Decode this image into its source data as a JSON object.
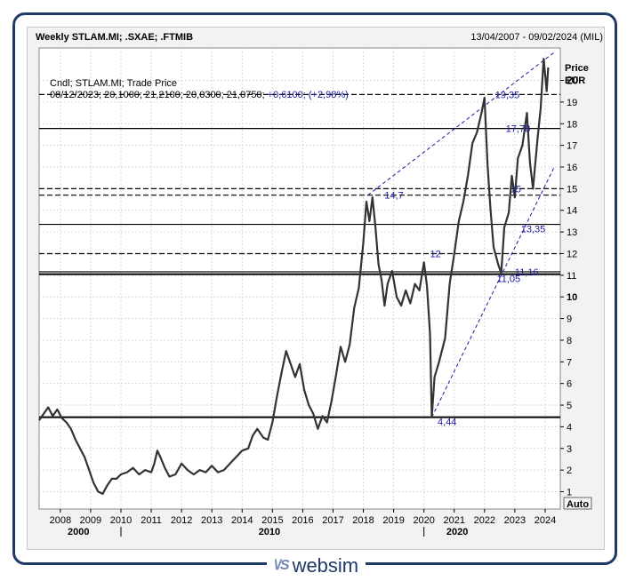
{
  "header": {
    "title": "Weekly STLAM.MI; .SXAE; .FTMIB",
    "date_range": "13/04/2007 - 09/02/2024 (MIL)"
  },
  "legend": {
    "line1": "Cndl; STLAM.MI; Trade Price",
    "line2_values": "08/12/2023; 20,1000; 21,2100; 20,0300; 21,0750;",
    "line2_change": "+0,6100; (+2,98%)"
  },
  "footer": {
    "brand": "websim",
    "mark": "\\/S"
  },
  "colors": {
    "candles": "#333333",
    "annotation": "#1a1aa0",
    "frame": "#1f3a68",
    "hline": "#000000"
  },
  "chart_data": {
    "type": "line",
    "y_axis_title": "Price",
    "y_axis_unit": "EUR",
    "auto_label": "Auto",
    "ylim": [
      0.2,
      21.5
    ],
    "xlim": [
      2007.3,
      2024.5
    ],
    "y_ticks": [
      1,
      2,
      3,
      4,
      5,
      6,
      7,
      8,
      9,
      10,
      11,
      12,
      13,
      14,
      15,
      16,
      17,
      18,
      19,
      20
    ],
    "x_ticks": [
      2008,
      2009,
      2010,
      2011,
      2012,
      2013,
      2014,
      2015,
      2016,
      2017,
      2018,
      2019,
      2020,
      2021,
      2022,
      2023,
      2024
    ],
    "era_labels": [
      {
        "x": 2008.6,
        "label": "2000"
      },
      {
        "x": 2014.9,
        "label": "2010"
      },
      {
        "x": 2021.1,
        "label": "2020"
      }
    ],
    "era_ticks": [
      2010.0,
      2020.0
    ],
    "price_series": [
      [
        2007.3,
        4.3
      ],
      [
        2007.45,
        4.6
      ],
      [
        2007.6,
        4.9
      ],
      [
        2007.75,
        4.5
      ],
      [
        2007.9,
        4.8
      ],
      [
        2008.05,
        4.4
      ],
      [
        2008.2,
        4.2
      ],
      [
        2008.35,
        3.9
      ],
      [
        2008.5,
        3.4
      ],
      [
        2008.65,
        3.0
      ],
      [
        2008.8,
        2.6
      ],
      [
        2008.95,
        2.0
      ],
      [
        2009.1,
        1.4
      ],
      [
        2009.25,
        1.0
      ],
      [
        2009.4,
        0.9
      ],
      [
        2009.55,
        1.3
      ],
      [
        2009.7,
        1.6
      ],
      [
        2009.85,
        1.6
      ],
      [
        2010.0,
        1.8
      ],
      [
        2010.2,
        1.9
      ],
      [
        2010.4,
        2.1
      ],
      [
        2010.6,
        1.8
      ],
      [
        2010.8,
        2.0
      ],
      [
        2011.0,
        1.9
      ],
      [
        2011.1,
        2.3
      ],
      [
        2011.2,
        2.9
      ],
      [
        2011.3,
        2.6
      ],
      [
        2011.45,
        2.1
      ],
      [
        2011.6,
        1.7
      ],
      [
        2011.8,
        1.8
      ],
      [
        2012.0,
        2.3
      ],
      [
        2012.2,
        2.0
      ],
      [
        2012.4,
        1.8
      ],
      [
        2012.6,
        2.0
      ],
      [
        2012.8,
        1.9
      ],
      [
        2013.0,
        2.2
      ],
      [
        2013.2,
        1.9
      ],
      [
        2013.4,
        2.0
      ],
      [
        2013.6,
        2.3
      ],
      [
        2013.8,
        2.6
      ],
      [
        2014.0,
        2.9
      ],
      [
        2014.2,
        3.0
      ],
      [
        2014.35,
        3.6
      ],
      [
        2014.5,
        3.9
      ],
      [
        2014.7,
        3.5
      ],
      [
        2014.85,
        3.4
      ],
      [
        2015.0,
        4.2
      ],
      [
        2015.15,
        5.4
      ],
      [
        2015.3,
        6.5
      ],
      [
        2015.45,
        7.5
      ],
      [
        2015.6,
        6.9
      ],
      [
        2015.75,
        6.3
      ],
      [
        2015.9,
        6.9
      ],
      [
        2016.05,
        5.7
      ],
      [
        2016.2,
        5.0
      ],
      [
        2016.35,
        4.6
      ],
      [
        2016.5,
        3.9
      ],
      [
        2016.65,
        4.5
      ],
      [
        2016.8,
        4.2
      ],
      [
        2016.95,
        5.2
      ],
      [
        2017.1,
        6.4
      ],
      [
        2017.25,
        7.7
      ],
      [
        2017.4,
        7.0
      ],
      [
        2017.55,
        7.8
      ],
      [
        2017.7,
        9.5
      ],
      [
        2017.85,
        10.4
      ],
      [
        2018.0,
        12.5
      ],
      [
        2018.1,
        14.4
      ],
      [
        2018.2,
        13.5
      ],
      [
        2018.3,
        14.6
      ],
      [
        2018.4,
        13.2
      ],
      [
        2018.5,
        11.5
      ],
      [
        2018.6,
        10.8
      ],
      [
        2018.7,
        9.6
      ],
      [
        2018.8,
        10.6
      ],
      [
        2018.95,
        11.2
      ],
      [
        2019.1,
        10.0
      ],
      [
        2019.25,
        9.6
      ],
      [
        2019.4,
        10.3
      ],
      [
        2019.55,
        9.7
      ],
      [
        2019.7,
        10.6
      ],
      [
        2019.85,
        10.3
      ],
      [
        2020.0,
        11.6
      ],
      [
        2020.1,
        10.5
      ],
      [
        2020.2,
        8.3
      ],
      [
        2020.26,
        4.44
      ],
      [
        2020.35,
        6.3
      ],
      [
        2020.5,
        7.0
      ],
      [
        2020.7,
        8.1
      ],
      [
        2020.85,
        10.6
      ],
      [
        2021.0,
        12.0
      ],
      [
        2021.15,
        13.5
      ],
      [
        2021.3,
        14.4
      ],
      [
        2021.45,
        15.6
      ],
      [
        2021.6,
        17.1
      ],
      [
        2021.75,
        17.6
      ],
      [
        2021.9,
        18.5
      ],
      [
        2022.0,
        19.2
      ],
      [
        2022.1,
        16.1
      ],
      [
        2022.2,
        14.0
      ],
      [
        2022.3,
        12.3
      ],
      [
        2022.45,
        11.5
      ],
      [
        2022.55,
        11.1
      ],
      [
        2022.65,
        13.2
      ],
      [
        2022.8,
        13.9
      ],
      [
        2022.9,
        15.6
      ],
      [
        2023.0,
        14.6
      ],
      [
        2023.1,
        16.4
      ],
      [
        2023.25,
        17.0
      ],
      [
        2023.4,
        18.5
      ],
      [
        2023.5,
        16.2
      ],
      [
        2023.6,
        15.0
      ],
      [
        2023.75,
        17.3
      ],
      [
        2023.85,
        18.7
      ],
      [
        2023.95,
        21.0
      ],
      [
        2024.05,
        19.5
      ],
      [
        2024.1,
        20.6
      ]
    ],
    "horizontal_levels": [
      {
        "y": 19.35,
        "style": "dashed",
        "label": "19,35",
        "label_x": 2022.35
      },
      {
        "y": 17.78,
        "style": "solid",
        "label": "17,78",
        "label_x": 2022.7
      },
      {
        "y": 15.0,
        "style": "dashed",
        "label": "15",
        "label_x": 2022.85
      },
      {
        "y": 14.7,
        "style": "dashed",
        "label": "14,7",
        "label_x": 2018.7
      },
      {
        "y": 13.35,
        "style": "solid",
        "label": "13,35",
        "label_x": 2023.2
      },
      {
        "y": 12.0,
        "style": "dashed",
        "label": "12",
        "label_x": 2020.2
      },
      {
        "y": 11.16,
        "style": "solid",
        "label": "11,16",
        "label_x": 2023.0
      },
      {
        "y": 11.05,
        "style": "solid",
        "label": "11,05",
        "label_x": 2022.4
      },
      {
        "y": 4.44,
        "style": "solid",
        "label": "4,44",
        "label_x": 2020.45
      }
    ],
    "trend_lines": [
      {
        "from": [
          2018.15,
          14.7
        ],
        "to": [
          2024.3,
          21.3
        ]
      },
      {
        "from": [
          2020.26,
          4.44
        ],
        "to": [
          2024.3,
          16.0
        ]
      }
    ]
  }
}
